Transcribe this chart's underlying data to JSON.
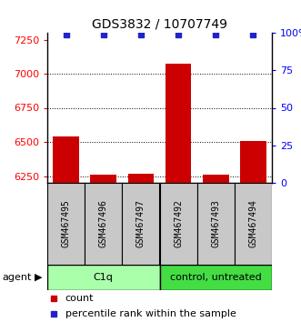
{
  "title": "GDS3832 / 10707749",
  "samples": [
    "GSM467495",
    "GSM467496",
    "GSM467497",
    "GSM467492",
    "GSM467493",
    "GSM467494"
  ],
  "group_colors_per_sample": [
    "#90EE90",
    "#90EE90",
    "#90EE90",
    "#44CC44",
    "#44CC44",
    "#44CC44"
  ],
  "count_values": [
    6540,
    6258,
    6268,
    7075,
    6258,
    6510
  ],
  "percentile_values": [
    99,
    99,
    99,
    99,
    99,
    99
  ],
  "ylim": [
    6200,
    7300
  ],
  "yticks": [
    6250,
    6500,
    6750,
    7000,
    7250
  ],
  "right_yticks": [
    0,
    25,
    50,
    75,
    100
  ],
  "bar_color": "#CC0000",
  "percentile_color": "#2222CC",
  "sample_bg": "#C8C8C8",
  "c1q_color": "#AAFFAA",
  "control_color": "#44DD44",
  "legend_count_label": "count",
  "legend_percentile_label": "percentile rank within the sample",
  "group_ranges": [
    [
      0,
      2,
      "C1q"
    ],
    [
      3,
      5,
      "control, untreated"
    ]
  ],
  "group_box_colors": [
    "#AAFFAA",
    "#44DD44"
  ]
}
